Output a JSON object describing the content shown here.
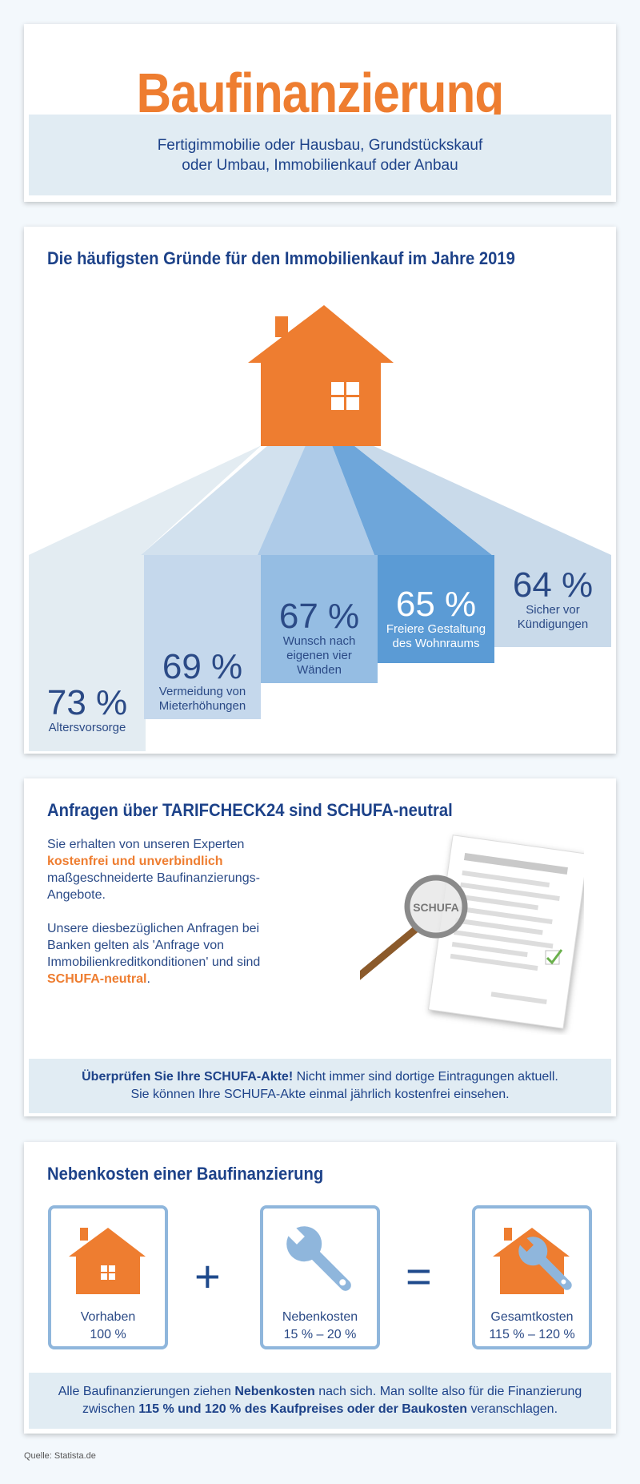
{
  "header": {
    "title": "Baufinanzierung",
    "subtitle_line1": "Fertigimmobilie oder Hausbau, Grundstückskauf",
    "subtitle_line2": "oder Umbau, Immobilienkauf oder Anbau"
  },
  "reasons": {
    "title": "Die häufigsten Gründe für den Immobilienkauf im Jahre 2019",
    "items": [
      {
        "pct": "73 %",
        "label1": "Altersvorsorge",
        "label2": "",
        "label3": "",
        "value": 73,
        "color": "#e3ecf2"
      },
      {
        "pct": "69 %",
        "label1": "Vermeidung von",
        "label2": "Mieterhöhungen",
        "label3": "",
        "value": 69,
        "color": "#c5d8ec"
      },
      {
        "pct": "67 %",
        "label1": "Wunsch nach",
        "label2": "eigenen vier",
        "label3": "Wänden",
        "value": 67,
        "color": "#95bde3"
      },
      {
        "pct": "65 %",
        "label1": "Freiere Gestaltung",
        "label2": "des Wohnraums",
        "label3": "",
        "value": 65,
        "color": "#5b9bd5"
      },
      {
        "pct": "64 %",
        "label1": "Sicher vor",
        "label2": "Kündigungen",
        "label3": "",
        "value": 64,
        "color": "#c9daea"
      }
    ]
  },
  "schufa": {
    "title": "Anfragen über TARIFCHECK24 sind SCHUFA-neutral",
    "p1_a": "Sie erhalten von unseren Experten",
    "p1_b": "kostenfrei und unverbindlich",
    "p1_c": "maßgeschneiderte Baufinanzierungs-Angebote.",
    "p2_a": "Unsere diesbezüglichen Anfragen bei Banken gelten als 'Anfrage von Immobilienkreditkonditionen' und sind",
    "p2_b": "SCHUFA-neutral",
    "p2_c": ".",
    "stamp": "SCHUFA",
    "band_bold": "Überprüfen Sie Ihre SCHUFA-Akte!",
    "band_rest": " Nicht immer sind dortige Eintragungen aktuell.",
    "band_line2": "Sie können Ihre SCHUFA-Akte einmal jährlich kostenfrei einsehen."
  },
  "costs": {
    "title": "Nebenkosten einer Baufinanzierung",
    "box1_name": "Vorhaben",
    "box1_value": "100 %",
    "box2_name": "Nebenkosten",
    "box2_value": "15 % – 20 %",
    "box3_name": "Gesamtkosten",
    "box3_value": "115 % – 120 %",
    "plus": "+",
    "equals": "=",
    "band_a": "Alle Baufinanzierungen ziehen ",
    "band_b": "Nebenkosten",
    "band_c": " nach sich. Man sollte also für die Finanzierung",
    "band_d": "zwischen ",
    "band_e": "115 % und 120 % des Kaufpreises oder der Baukosten",
    "band_f": " veranschlagen."
  },
  "source": "Quelle: Statista.de",
  "colors": {
    "orange": "#ee7d30",
    "navy": "#1d4289",
    "band": "#e1ecf3",
    "box_border": "#8fb6dc"
  },
  "icons": [
    "house-icon",
    "magnifier-icon",
    "document-icon",
    "checkmark-icon",
    "wrench-icon"
  ]
}
